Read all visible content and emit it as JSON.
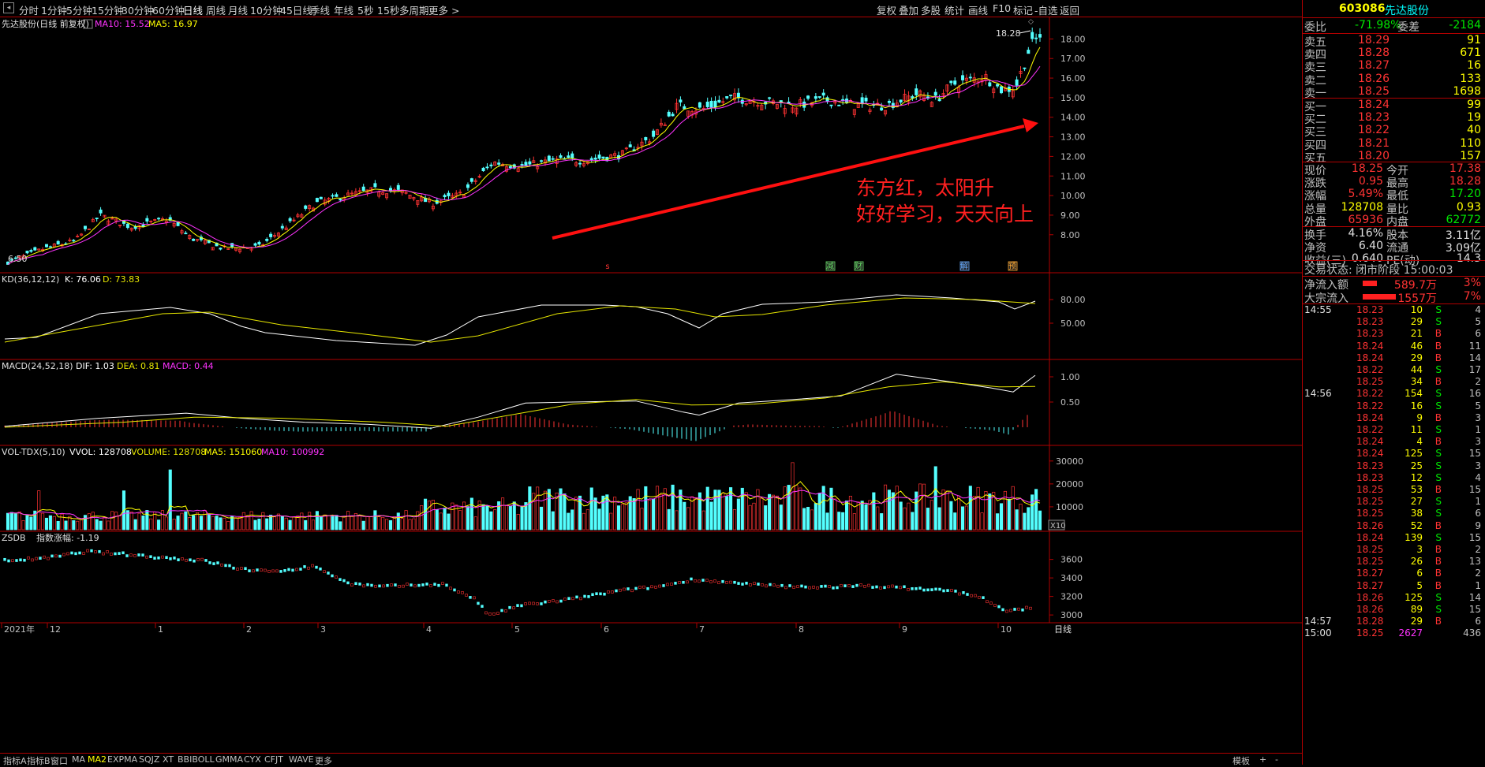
{
  "topbar": {
    "periods": [
      "分时",
      "1分钟",
      "5分钟",
      "15分钟",
      "30分钟",
      "60分钟",
      "日线",
      "周线",
      "月线",
      "10分钟",
      "45日线",
      "季线",
      "年线",
      "5秒",
      "15秒",
      "多周期",
      "更多 >"
    ],
    "active": "日线",
    "tools": [
      "复权",
      "叠加",
      "多股",
      "统计",
      "画线",
      "F10",
      "-自选",
      "返回"
    ],
    "mark_label": "标记"
  },
  "main": {
    "title": "先达股份(日线 前复权)",
    "ma10_label": "MA10: 15.52",
    "ma5_label": "MA5: 16.97",
    "high_label": "18.28",
    "low_label": "6.50",
    "yticks": [
      "18.00",
      "17.00",
      "16.00",
      "15.00",
      "14.00",
      "13.00",
      "12.00",
      "11.00",
      "10.00",
      "9.00",
      "8.00"
    ],
    "annotation_line1": "东方红，太阳升",
    "annotation_line2": "好好学习，天天向上",
    "badges": [
      "s",
      "减",
      "财",
      "解",
      "预"
    ]
  },
  "kd": {
    "title": "KD(36,12,12)",
    "k_label": "K: 76.06",
    "d_label": "D: 73.83",
    "yticks": [
      "80.00",
      "50.00"
    ]
  },
  "macd": {
    "title": "MACD(24,52,18)",
    "dif_label": "DIF: 1.03",
    "dea_label": "DEA: 0.81",
    "macd_label": "MACD: 0.44",
    "yticks": [
      "1.00",
      "0.50"
    ]
  },
  "vol": {
    "title": "VOL-TDX(5,10)",
    "vvol_label": "VVOL: 128708",
    "volume_label": "VOLUME: 128708",
    "ma5_label": "MA5: 151060",
    "ma10_label": "MA10: 100992",
    "yticks": [
      "30000",
      "20000",
      "10000"
    ],
    "unit": "X10"
  },
  "zsdb": {
    "title": "ZSDB",
    "label": "指数涨幅: -1.19",
    "yticks": [
      "3600",
      "3400",
      "3200",
      "3000"
    ]
  },
  "xaxis": {
    "labels": [
      "2021年",
      "12",
      "1",
      "2",
      "3",
      "4",
      "5",
      "6",
      "7",
      "8",
      "9",
      "10"
    ],
    "tail": "日线"
  },
  "bottombar": {
    "tabs": [
      "指标A",
      "指标B",
      "窗口",
      "MA",
      "MA2",
      "EXPMA",
      "SQJZ",
      "XT",
      "BBIBOLL",
      "GMMA",
      "CYX",
      "CFJT",
      "WAVE",
      "更多"
    ],
    "active": "MA2",
    "right": [
      "模板",
      "+",
      "-"
    ]
  },
  "side": {
    "code": "603086",
    "name": "先达股份",
    "weibi_label": "委比",
    "weibi": "-71.98%",
    "weicha_label": "委差",
    "weicha": "-2184",
    "sells": [
      {
        "label": "卖五",
        "price": "18.29",
        "vol": "91"
      },
      {
        "label": "卖四",
        "price": "18.28",
        "vol": "671"
      },
      {
        "label": "卖三",
        "price": "18.27",
        "vol": "16"
      },
      {
        "label": "卖二",
        "price": "18.26",
        "vol": "133"
      },
      {
        "label": "卖一",
        "price": "18.25",
        "vol": "1698"
      }
    ],
    "buys": [
      {
        "label": "买一",
        "price": "18.24",
        "vol": "99"
      },
      {
        "label": "买二",
        "price": "18.23",
        "vol": "19"
      },
      {
        "label": "买三",
        "price": "18.22",
        "vol": "40"
      },
      {
        "label": "买四",
        "price": "18.21",
        "vol": "110"
      },
      {
        "label": "买五",
        "price": "18.20",
        "vol": "157"
      }
    ],
    "stats": [
      {
        "l1": "现价",
        "v1": "18.25",
        "l2": "今开",
        "v2": "17.38"
      },
      {
        "l1": "涨跌",
        "v1": "0.95",
        "l2": "最高",
        "v2": "18.28"
      },
      {
        "l1": "涨幅",
        "v1": "5.49%",
        "l2": "最低",
        "v2": "17.20"
      },
      {
        "l1": "总量",
        "v1": "128708",
        "l2": "量比",
        "v2": "0.93"
      },
      {
        "l1": "外盘",
        "v1": "65936",
        "l2": "内盘",
        "v2": "62772"
      },
      {
        "l1": "换手",
        "v1": "4.16%",
        "l2": "股本",
        "v2": "3.11亿"
      },
      {
        "l1": "净资",
        "v1": "6.40",
        "l2": "流通",
        "v2": "3.09亿"
      },
      {
        "l1": "收益(三)",
        "v1": "0.640",
        "l2": "PE(动)",
        "v2": "14.3"
      }
    ],
    "trade_status": "交易状态: 闭市阶段 15:00:03",
    "flows": [
      {
        "label": "净流入额",
        "value": "589.7万",
        "pct": "3%",
        "bar": 0.3
      },
      {
        "label": "大宗流入",
        "value": "1557万",
        "pct": "7%",
        "bar": 0.7
      }
    ],
    "ticks": [
      {
        "t": "14:55",
        "p": "18.23",
        "v": "10",
        "s": "S",
        "n": "4"
      },
      {
        "t": "",
        "p": "18.23",
        "v": "29",
        "s": "S",
        "n": "5"
      },
      {
        "t": "",
        "p": "18.23",
        "v": "21",
        "s": "B",
        "n": "6"
      },
      {
        "t": "",
        "p": "18.24",
        "v": "46",
        "s": "B",
        "n": "11"
      },
      {
        "t": "",
        "p": "18.24",
        "v": "29",
        "s": "B",
        "n": "14"
      },
      {
        "t": "",
        "p": "18.22",
        "v": "44",
        "s": "S",
        "n": "17"
      },
      {
        "t": "",
        "p": "18.25",
        "v": "34",
        "s": "B",
        "n": "2"
      },
      {
        "t": "14:56",
        "p": "18.22",
        "v": "154",
        "s": "S",
        "n": "16"
      },
      {
        "t": "",
        "p": "18.22",
        "v": "16",
        "s": "S",
        "n": "5"
      },
      {
        "t": "",
        "p": "18.24",
        "v": "9",
        "s": "B",
        "n": "3"
      },
      {
        "t": "",
        "p": "18.22",
        "v": "11",
        "s": "S",
        "n": "1"
      },
      {
        "t": "",
        "p": "18.24",
        "v": "4",
        "s": "B",
        "n": "3"
      },
      {
        "t": "",
        "p": "18.24",
        "v": "125",
        "s": "S",
        "n": "15"
      },
      {
        "t": "",
        "p": "18.23",
        "v": "25",
        "s": "S",
        "n": "3"
      },
      {
        "t": "",
        "p": "18.23",
        "v": "12",
        "s": "S",
        "n": "4"
      },
      {
        "t": "",
        "p": "18.25",
        "v": "53",
        "s": "B",
        "n": "15"
      },
      {
        "t": "",
        "p": "18.25",
        "v": "27",
        "s": "S",
        "n": "1"
      },
      {
        "t": "",
        "p": "18.25",
        "v": "38",
        "s": "S",
        "n": "6"
      },
      {
        "t": "",
        "p": "18.26",
        "v": "52",
        "s": "B",
        "n": "9"
      },
      {
        "t": "",
        "p": "18.24",
        "v": "139",
        "s": "S",
        "n": "15"
      },
      {
        "t": "",
        "p": "18.25",
        "v": "3",
        "s": "B",
        "n": "2"
      },
      {
        "t": "",
        "p": "18.25",
        "v": "26",
        "s": "B",
        "n": "13"
      },
      {
        "t": "",
        "p": "18.27",
        "v": "6",
        "s": "B",
        "n": "2"
      },
      {
        "t": "",
        "p": "18.27",
        "v": "5",
        "s": "B",
        "n": "1"
      },
      {
        "t": "",
        "p": "18.26",
        "v": "125",
        "s": "S",
        "n": "14"
      },
      {
        "t": "",
        "p": "18.26",
        "v": "89",
        "s": "S",
        "n": "15"
      },
      {
        "t": "14:57",
        "p": "18.28",
        "v": "29",
        "s": "B",
        "n": "6"
      },
      {
        "t": "15:00",
        "p": "18.25",
        "v": "2627",
        "s": "",
        "n": "436"
      }
    ]
  },
  "colors": {
    "up": "#ff3333",
    "down": "#54ffff",
    "ma5": "#ffff00",
    "ma10": "#ff33ff",
    "k": "#ffffff",
    "d": "#e6e600",
    "grid": "#b00000",
    "accent": "#ff0000"
  }
}
